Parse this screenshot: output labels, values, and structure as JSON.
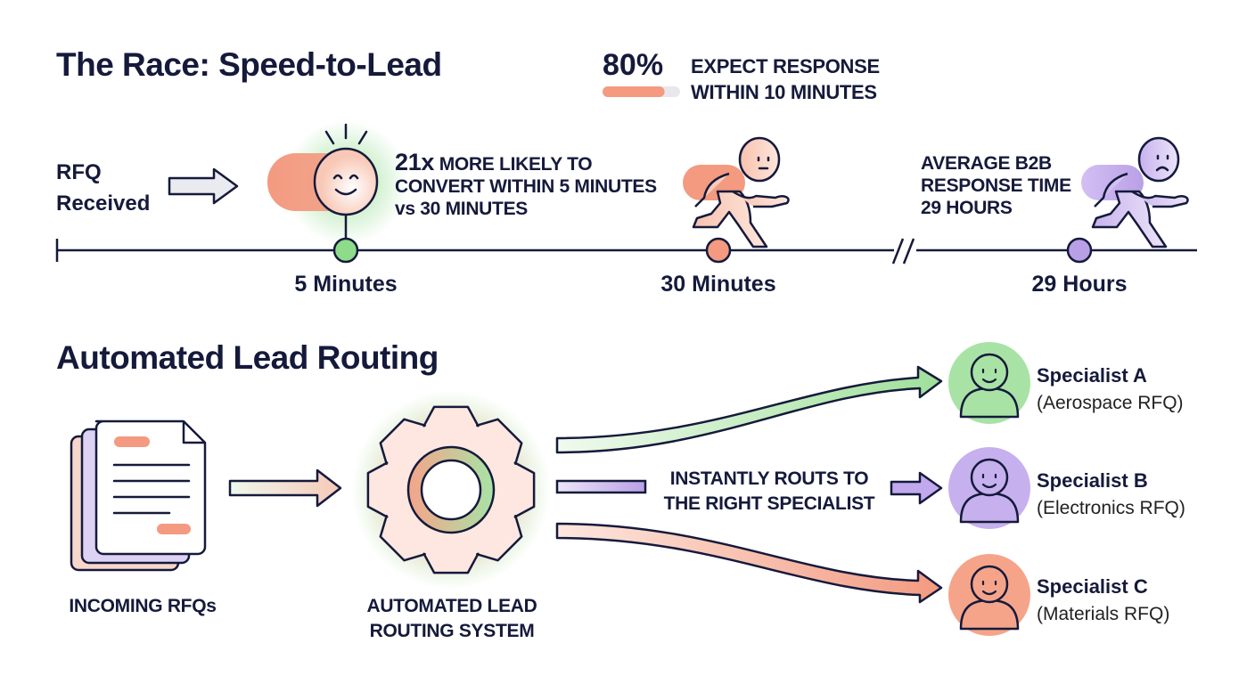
{
  "race": {
    "title": "The Race: Speed-to-Lead",
    "stat_percent": "80%",
    "stat_value": 0.8,
    "stat_line1": "EXPECT RESPONSE",
    "stat_line2": "WITHIN 10 MINUTES",
    "start_label_line1": "RFQ",
    "start_label_line2": "Received",
    "callout_5min_highlight": "21x",
    "callout_5min_line1": "MORE LIKELY TO",
    "callout_5min_line2": "CONVERT WITHIN 5 MINUTES",
    "callout_5min_line3": "vs 30 MINUTES",
    "callout_29h_line1": "AVERAGE B2B",
    "callout_29h_line2": "RESPONSE TIME",
    "callout_29h_line3": "29 HOURS",
    "milestones": [
      {
        "label": "5 Minutes",
        "color": "#8edb8a",
        "mood": "happy"
      },
      {
        "label": "30 Minutes",
        "color": "#f39a80",
        "mood": "neutral"
      },
      {
        "label": "29 Hours",
        "color": "#b9a0e6",
        "mood": "sad"
      }
    ]
  },
  "routing": {
    "title": "Automated Lead Routing",
    "incoming_label": "INCOMING RFQs",
    "system_label_line1": "AUTOMATED LEAD",
    "system_label_line2": "ROUTING SYSTEM",
    "route_label_line1": "INSTANTLY ROUTS TO",
    "route_label_line2": "THE RIGHT SPECIALIST",
    "specialists": [
      {
        "name": "Specialist A",
        "area": "(Aerospace RFQ)",
        "color": "#a8e3a5"
      },
      {
        "name": "Specialist B",
        "area": "(Electronics RFQ)",
        "color": "#c6b0ee"
      },
      {
        "name": "Specialist C",
        "area": "(Materials RFQ)",
        "color": "#f5a48a"
      }
    ]
  },
  "colors": {
    "ink": "#151a3b",
    "salmon": "#f39a80",
    "green": "#8edb8a",
    "purple": "#b9a0e6"
  }
}
